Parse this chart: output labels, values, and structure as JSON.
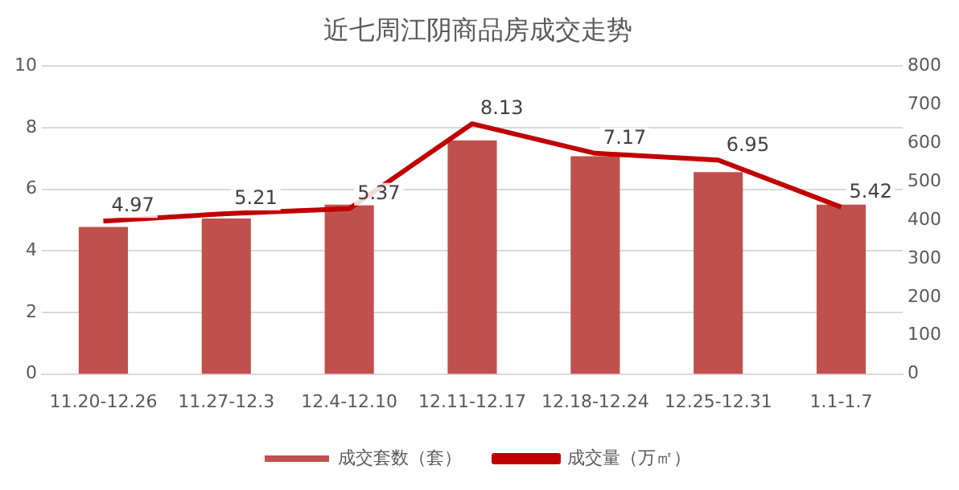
{
  "chart_data": {
    "type": "bar",
    "title": "近七周江阴商品房成交走势",
    "categories": [
      "11.20-12.26",
      "11.27-12.3",
      "12.4-12.10",
      "12.11-12.17",
      "12.18-12.24",
      "12.25-12.31",
      "1.1-1.7"
    ],
    "series": [
      {
        "name": "成交套数（套）",
        "axis": "y2",
        "color": "#c0504d",
        "values": [
          382,
          404,
          440,
          607,
          566,
          525,
          440
        ]
      },
      {
        "name": "成交量（万㎡）",
        "type": "line",
        "color": "#c00000",
        "values": [
          4.97,
          5.21,
          5.37,
          8.13,
          7.17,
          6.95,
          5.42
        ],
        "value_labels": [
          "4.97",
          "5.21",
          "5.37",
          "8.13",
          "7.17",
          "6.95",
          "5.42"
        ]
      }
    ],
    "ylim": [
      0,
      10
    ],
    "yticks": [
      0,
      2,
      4,
      6,
      8,
      10
    ],
    "y2lim": [
      0,
      800
    ],
    "y2ticks": [
      0,
      100,
      200,
      300,
      400,
      500,
      600,
      700,
      800
    ],
    "grid": "y",
    "legend": "bottom",
    "marker": "none"
  }
}
